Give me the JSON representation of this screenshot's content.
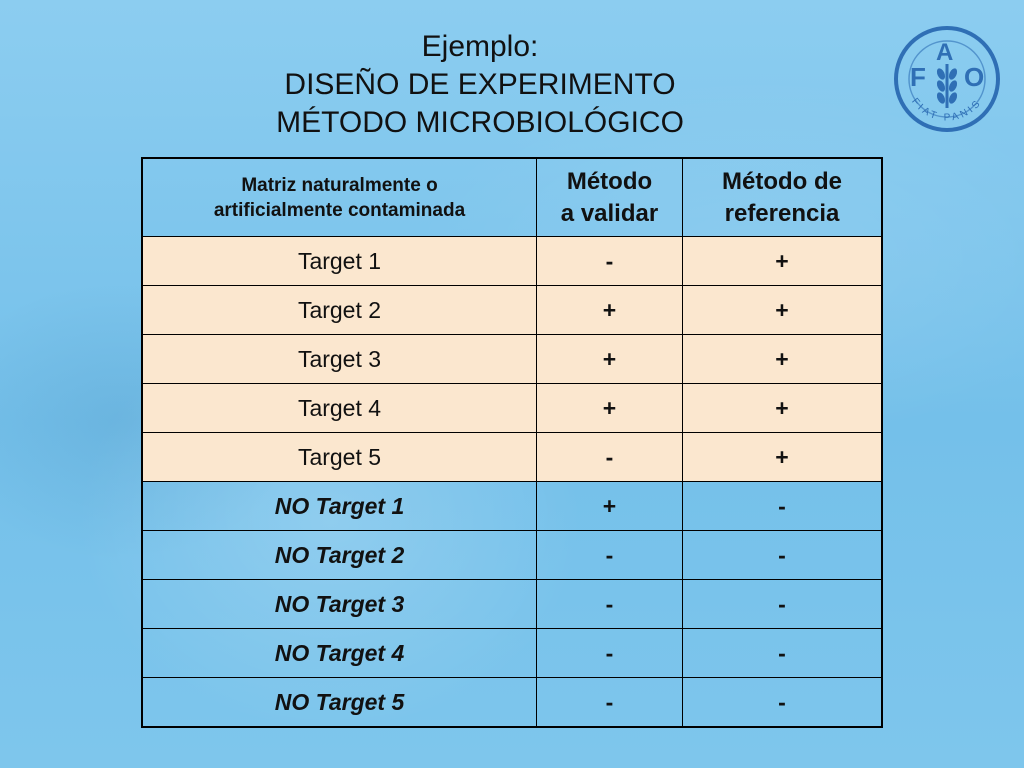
{
  "title": {
    "line1": "Ejemplo:",
    "line2": "DISEÑO DE EXPERIMENTO",
    "line3": "MÉTODO MICROBIOLÓGICO"
  },
  "logo": {
    "letters": [
      "F",
      "A",
      "O"
    ],
    "motto": "FIAT PANIS"
  },
  "table": {
    "headers": {
      "col1_line1": "Matriz naturalmente o",
      "col1_line2": "artificialmente contaminada",
      "col2_line1": "Método",
      "col2_line2": "a validar",
      "col3_line1": "Método de",
      "col3_line2": "referencia"
    },
    "rows": [
      {
        "name": "Target 1",
        "validar": "-",
        "referencia": "+"
      },
      {
        "name": "Target 2",
        "validar": "+",
        "referencia": "+"
      },
      {
        "name": "Target 3",
        "validar": "+",
        "referencia": "+"
      },
      {
        "name": "Target 4",
        "validar": "+",
        "referencia": "+"
      },
      {
        "name": "Target 5",
        "validar": "-",
        "referencia": "+"
      },
      {
        "name": "NO Target 1",
        "validar": "+",
        "referencia": "-"
      },
      {
        "name": "NO Target 2",
        "validar": "-",
        "referencia": "-"
      },
      {
        "name": "NO Target 3",
        "validar": "-",
        "referencia": "-"
      },
      {
        "name": "NO Target 4",
        "validar": "-",
        "referencia": "-"
      },
      {
        "name": "NO Target 5",
        "validar": "-",
        "referencia": "-"
      }
    ]
  },
  "colors": {
    "background": "#7cc5ec",
    "target_row_bg": "#fbe7cf",
    "plus_pink": "#e0117e",
    "minus_orange": "#e3a100",
    "teal": "#009d8f",
    "logo_blue": "#2f6fb5"
  }
}
